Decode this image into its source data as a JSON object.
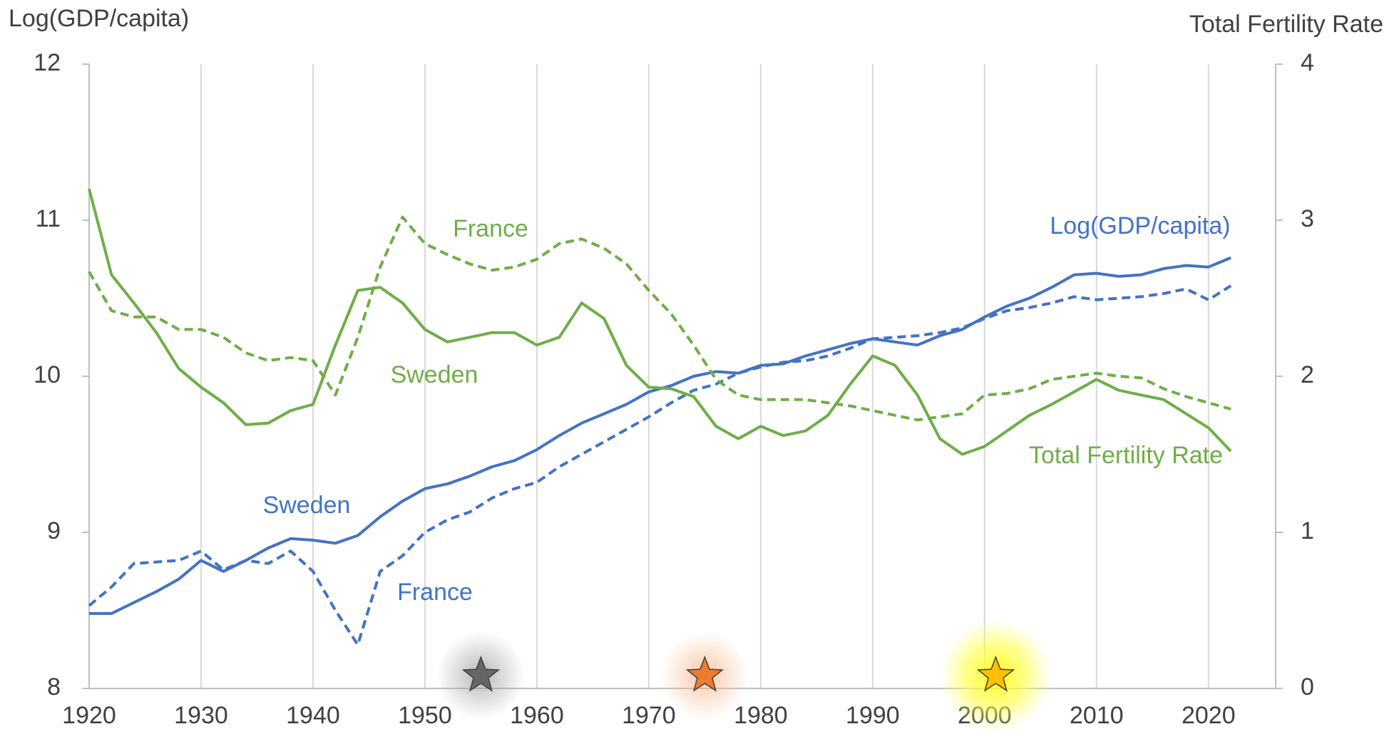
{
  "chart_data": {
    "type": "line",
    "y_axis_title": "Log(GDP/capita)",
    "y2_axis_title": "Total Fertility Rate",
    "x": [
      1920,
      1922,
      1924,
      1926,
      1928,
      1930,
      1932,
      1934,
      1936,
      1938,
      1940,
      1942,
      1944,
      1946,
      1948,
      1950,
      1952,
      1954,
      1956,
      1958,
      1960,
      1962,
      1964,
      1966,
      1968,
      1970,
      1972,
      1974,
      1976,
      1978,
      1980,
      1982,
      1984,
      1986,
      1988,
      1990,
      1992,
      1994,
      1996,
      1998,
      2000,
      2002,
      2004,
      2006,
      2008,
      2010,
      2012,
      2014,
      2016,
      2018,
      2020,
      2022
    ],
    "series": [
      {
        "name": "Sweden",
        "color": "#4472c4",
        "linestyle": "solid",
        "axis": "y",
        "values": [
          8.48,
          8.48,
          8.55,
          8.62,
          8.7,
          8.82,
          8.75,
          8.82,
          8.9,
          8.96,
          8.95,
          8.93,
          8.98,
          9.1,
          9.2,
          9.28,
          9.31,
          9.36,
          9.42,
          9.46,
          9.53,
          9.62,
          9.7,
          9.76,
          9.82,
          9.9,
          9.94,
          10.0,
          10.03,
          10.02,
          10.07,
          10.08,
          10.13,
          10.17,
          10.21,
          10.24,
          10.22,
          10.2,
          10.26,
          10.3,
          10.38,
          10.45,
          10.5,
          10.57,
          10.65,
          10.66,
          10.64,
          10.65,
          10.69,
          10.71,
          10.7,
          10.76
        ]
      },
      {
        "name": "France",
        "color": "#4472c4",
        "linestyle": "dashed",
        "axis": "y",
        "values": [
          8.53,
          8.65,
          8.8,
          8.81,
          8.82,
          8.88,
          8.76,
          8.82,
          8.8,
          8.88,
          8.75,
          8.5,
          8.28,
          8.75,
          8.85,
          9.0,
          9.08,
          9.13,
          9.22,
          9.28,
          9.32,
          9.42,
          9.5,
          9.58,
          9.66,
          9.74,
          9.83,
          9.91,
          9.95,
          10.02,
          10.06,
          10.09,
          10.1,
          10.13,
          10.18,
          10.24,
          10.25,
          10.26,
          10.28,
          10.31,
          10.37,
          10.42,
          10.44,
          10.47,
          10.51,
          10.49,
          10.5,
          10.51,
          10.53,
          10.56,
          10.49,
          10.58
        ]
      },
      {
        "name": "Sweden",
        "color": "#70ad47",
        "linestyle": "solid",
        "axis": "y2",
        "values": [
          3.2,
          2.65,
          2.47,
          2.28,
          2.05,
          1.93,
          1.83,
          1.69,
          1.7,
          1.78,
          1.82,
          2.2,
          2.55,
          2.57,
          2.47,
          2.3,
          2.22,
          2.25,
          2.28,
          2.28,
          2.2,
          2.25,
          2.47,
          2.37,
          2.07,
          1.93,
          1.92,
          1.87,
          1.68,
          1.6,
          1.68,
          1.62,
          1.65,
          1.75,
          1.95,
          2.13,
          2.07,
          1.88,
          1.6,
          1.5,
          1.55,
          1.65,
          1.75,
          1.82,
          1.9,
          1.98,
          1.91,
          1.88,
          1.85,
          1.76,
          1.67,
          1.52
        ]
      },
      {
        "name": "France",
        "color": "#70ad47",
        "linestyle": "dashed",
        "axis": "y2",
        "values": [
          2.67,
          2.42,
          2.38,
          2.38,
          2.3,
          2.3,
          2.25,
          2.15,
          2.1,
          2.12,
          2.1,
          1.88,
          2.25,
          2.7,
          3.02,
          2.85,
          2.78,
          2.72,
          2.68,
          2.7,
          2.75,
          2.85,
          2.88,
          2.82,
          2.72,
          2.55,
          2.4,
          2.2,
          1.98,
          1.88,
          1.85,
          1.85,
          1.85,
          1.83,
          1.81,
          1.78,
          1.75,
          1.72,
          1.74,
          1.76,
          1.88,
          1.89,
          1.92,
          1.98,
          2.0,
          2.02,
          2.0,
          1.99,
          1.92,
          1.87,
          1.83,
          1.79
        ]
      }
    ],
    "annotations": [
      {
        "text": "France",
        "color": "#70ad47"
      },
      {
        "text": "Sweden",
        "color": "#70ad47"
      },
      {
        "text": "Log(GDP/capita)",
        "color": "#4472c4"
      },
      {
        "text": "Total Fertility Rate",
        "color": "#70ad47"
      },
      {
        "text": "Sweden",
        "color": "#4472c4"
      },
      {
        "text": "France",
        "color": "#4472c4"
      }
    ],
    "markers": [
      {
        "x": 1955,
        "color": "#666666"
      },
      {
        "x": 1975,
        "color": "#ed7d31"
      },
      {
        "x": 2001,
        "color": "#ffc000"
      }
    ],
    "xlim": [
      1920,
      2026
    ],
    "xticks": [
      1920,
      1930,
      1940,
      1950,
      1960,
      1970,
      1980,
      1990,
      2000,
      2010,
      2020
    ],
    "ylim": [
      8,
      12
    ],
    "yticks": [
      8,
      9,
      10,
      11,
      12
    ],
    "y2lim": [
      0,
      4
    ],
    "y2ticks": [
      0,
      1,
      2,
      3,
      4
    ],
    "grid": true
  }
}
